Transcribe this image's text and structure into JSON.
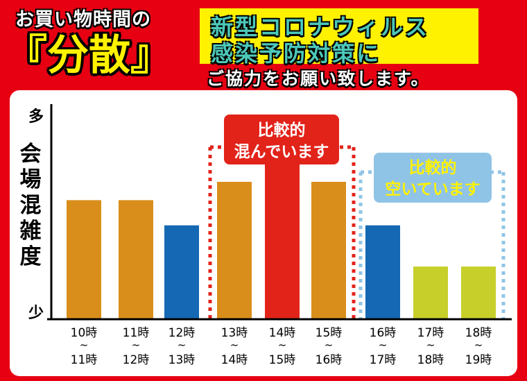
{
  "header": {
    "line1": "お買い物時間の",
    "line2": "『分散』",
    "box_line1": "新型コロナウィルス",
    "box_line2": "感染予防対策に",
    "line3": "ご協力をお願い致します。"
  },
  "chart_data": {
    "type": "bar",
    "title": "",
    "ylabel": "会場混雑度",
    "y_top_label": "多",
    "y_bottom_label": "少",
    "categories": [
      {
        "top": "10時",
        "tilde": "~",
        "bottom": "11時"
      },
      {
        "top": "11時",
        "tilde": "~",
        "bottom": "12時"
      },
      {
        "top": "12時",
        "tilde": "~",
        "bottom": "13時"
      },
      {
        "top": "13時",
        "tilde": "~",
        "bottom": "14時"
      },
      {
        "top": "14時",
        "tilde": "~",
        "bottom": "15時"
      },
      {
        "top": "15時",
        "tilde": "~",
        "bottom": "16時"
      },
      {
        "top": "16時",
        "tilde": "~",
        "bottom": "17時"
      },
      {
        "top": "17時",
        "tilde": "~",
        "bottom": "18時"
      },
      {
        "top": "18時",
        "tilde": "~",
        "bottom": "19時"
      }
    ],
    "values": [
      0.52,
      0.52,
      0.41,
      0.6,
      0.68,
      0.6,
      0.41,
      0.23,
      0.23
    ],
    "bar_colors": [
      "#d98e1b",
      "#d98e1b",
      "#1568b3",
      "#d98e1b",
      "#e2231a",
      "#d98e1b",
      "#1568b3",
      "#c7cf2a",
      "#c7cf2a"
    ],
    "ylim": [
      0,
      1
    ],
    "grid": false,
    "annotations": [
      {
        "label_line1": "比較的",
        "label_line2": "混んでいます",
        "from_index": 3,
        "to_index": 5,
        "color": "#e2231a",
        "text_color": "#ffffff"
      },
      {
        "label_line1": "比較的",
        "label_line2": "空いています",
        "from_index": 6,
        "to_index": 8,
        "color": "#90c4e6",
        "text_color": "#fff200"
      }
    ]
  }
}
